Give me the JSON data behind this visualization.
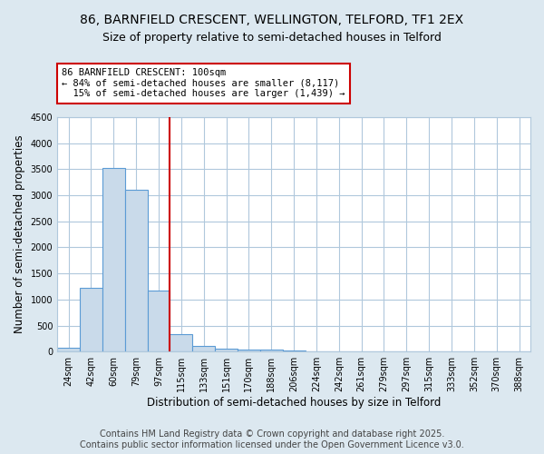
{
  "title": "86, BARNFIELD CRESCENT, WELLINGTON, TELFORD, TF1 2EX",
  "subtitle": "Size of property relative to semi-detached houses in Telford",
  "xlabel": "Distribution of semi-detached houses by size in Telford",
  "ylabel": "Number of semi-detached properties",
  "bin_labels": [
    "24sqm",
    "42sqm",
    "60sqm",
    "79sqm",
    "97sqm",
    "115sqm",
    "133sqm",
    "151sqm",
    "170sqm",
    "188sqm",
    "206sqm",
    "224sqm",
    "242sqm",
    "261sqm",
    "279sqm",
    "297sqm",
    "315sqm",
    "333sqm",
    "352sqm",
    "370sqm",
    "388sqm"
  ],
  "bar_values": [
    75,
    1220,
    3520,
    3100,
    1180,
    340,
    105,
    60,
    40,
    30,
    25,
    0,
    0,
    0,
    0,
    0,
    0,
    0,
    0,
    0,
    0
  ],
  "bar_color": "#c9daea",
  "bar_edge_color": "#5b9bd5",
  "property_bin_index": 4,
  "red_line_color": "#cc0000",
  "annotation_line1": "86 BARNFIELD CRESCENT: 100sqm",
  "annotation_line2": "← 84% of semi-detached houses are smaller (8,117)",
  "annotation_line3": "  15% of semi-detached houses are larger (1,439) →",
  "annotation_box_color": "#cc0000",
  "ylim": [
    0,
    4500
  ],
  "yticks": [
    0,
    500,
    1000,
    1500,
    2000,
    2500,
    3000,
    3500,
    4000,
    4500
  ],
  "footer_line1": "Contains HM Land Registry data © Crown copyright and database right 2025.",
  "footer_line2": "Contains public sector information licensed under the Open Government Licence v3.0.",
  "background_color": "#dce8f0",
  "plot_background_color": "#ffffff",
  "title_fontsize": 10,
  "subtitle_fontsize": 9,
  "axis_label_fontsize": 8.5,
  "tick_fontsize": 7,
  "annotation_fontsize": 7.5,
  "footer_fontsize": 7,
  "grid_color": "#b0c8dc"
}
